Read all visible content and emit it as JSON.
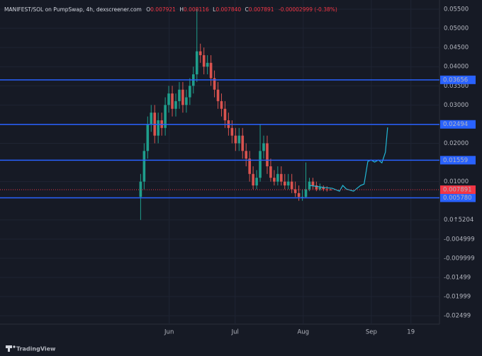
{
  "chart_data": {
    "type": "candlestick",
    "header": {
      "symbol": "MANIFEST/SOL on PumpSwap, 4h, dexscreener.com",
      "ohlc": [
        {
          "key": "O",
          "value": "0.007921"
        },
        {
          "key": "H",
          "value": "0.008116"
        },
        {
          "key": "L",
          "value": "0.007840"
        },
        {
          "key": "C",
          "value": "0.007891"
        }
      ],
      "change": "-0.00002999 (-0.38%)"
    },
    "x": [
      18,
      19.6,
      21.2,
      22.8,
      24.4,
      26,
      27.6,
      29.2,
      30.8,
      32.4,
      34,
      35.6,
      37.2,
      38.8,
      40.4,
      42,
      43.6,
      45.2,
      46.8,
      48.4,
      50,
      51.6,
      53.2,
      54.8,
      56.4,
      58,
      59.6,
      61.2,
      62.8,
      64.4,
      66,
      67.6,
      69.2,
      70.8,
      72.4,
      74,
      75.6,
      77.2,
      78.8,
      80.4,
      82,
      83.6,
      85.2,
      86.8,
      88.4,
      90,
      91.6,
      93.2,
      94.8,
      96.4,
      98,
      99.6,
      101.2,
      102.8,
      104.4
    ],
    "open": [
      0.006,
      0.01,
      0.018,
      0.025,
      0.028,
      0.022,
      0.026,
      0.024,
      0.03,
      0.033,
      0.029,
      0.031,
      0.034,
      0.03,
      0.032,
      0.035,
      0.038,
      0.044,
      0.043,
      0.04,
      0.041,
      0.037,
      0.034,
      0.031,
      0.029,
      0.026,
      0.024,
      0.022,
      0.02,
      0.022,
      0.018,
      0.016,
      0.012,
      0.009,
      0.011,
      0.018,
      0.02,
      0.014,
      0.011,
      0.01,
      0.012,
      0.01,
      0.009,
      0.01,
      0.008,
      0.007,
      0.006,
      0.006,
      0.008,
      0.01,
      0.009,
      0.008,
      0.0085,
      0.008,
      0.007921
    ],
    "high": [
      0.012,
      0.02,
      0.027,
      0.03,
      0.03,
      0.028,
      0.028,
      0.032,
      0.035,
      0.035,
      0.033,
      0.036,
      0.036,
      0.034,
      0.037,
      0.04,
      0.055,
      0.046,
      0.045,
      0.043,
      0.043,
      0.039,
      0.036,
      0.033,
      0.031,
      0.028,
      0.026,
      0.024,
      0.024,
      0.024,
      0.02,
      0.018,
      0.014,
      0.013,
      0.025,
      0.022,
      0.022,
      0.016,
      0.013,
      0.014,
      0.014,
      0.012,
      0.012,
      0.012,
      0.01,
      0.009,
      0.008,
      0.015,
      0.011,
      0.011,
      0.01,
      0.0095,
      0.009,
      0.0088,
      0.008116
    ],
    "low": [
      0.0,
      0.008,
      0.016,
      0.023,
      0.02,
      0.02,
      0.022,
      0.022,
      0.028,
      0.027,
      0.027,
      0.029,
      0.028,
      0.028,
      0.03,
      0.033,
      0.036,
      0.041,
      0.038,
      0.038,
      0.035,
      0.032,
      0.029,
      0.027,
      0.024,
      0.022,
      0.02,
      0.018,
      0.018,
      0.016,
      0.014,
      0.01,
      0.008,
      0.008,
      0.01,
      0.016,
      0.012,
      0.01,
      0.009,
      0.009,
      0.009,
      0.008,
      0.008,
      0.007,
      0.006,
      0.005,
      0.005,
      0.0058,
      0.0075,
      0.008,
      0.0075,
      0.0076,
      0.0075,
      0.0074,
      0.00784
    ],
    "close": [
      0.01,
      0.018,
      0.025,
      0.028,
      0.022,
      0.026,
      0.024,
      0.03,
      0.033,
      0.029,
      0.031,
      0.034,
      0.03,
      0.032,
      0.035,
      0.038,
      0.044,
      0.043,
      0.04,
      0.041,
      0.037,
      0.034,
      0.031,
      0.029,
      0.026,
      0.024,
      0.022,
      0.02,
      0.022,
      0.018,
      0.016,
      0.012,
      0.009,
      0.011,
      0.018,
      0.02,
      0.014,
      0.011,
      0.01,
      0.012,
      0.01,
      0.009,
      0.01,
      0.008,
      0.007,
      0.006,
      0.006,
      0.008,
      0.01,
      0.009,
      0.008,
      0.0085,
      0.008,
      0.0079,
      0.007891
    ],
    "up_color": "#1f9e8c",
    "down_color": "#d9534f",
    "projection": {
      "color": "#22b8d6",
      "x": [
        94.9,
        102,
        105.2,
        108.5,
        110,
        111.6,
        114.9,
        118.1,
        119.7,
        121.4,
        122.9,
        124.5,
        126.2,
        127.8,
        129.4,
        130.4
      ],
      "values": [
        0.009,
        0.00844,
        0.00825,
        0.00751,
        0.009,
        0.00807,
        0.00751,
        0.009,
        0.00936,
        0.01527,
        0.01564,
        0.01509,
        0.01564,
        0.0149,
        0.01768,
        0.02414
      ]
    },
    "levels": [
      {
        "value": 0.03656,
        "label": "0.03656"
      },
      {
        "value": 0.02494,
        "label": "0.02494"
      },
      {
        "value": 0.01559,
        "label": "0.01559"
      },
      {
        "value": 0.00578,
        "label": "0.005780"
      }
    ],
    "level_color": "#2962ff",
    "last_price": {
      "value": 0.007891,
      "label": "0.007891"
    },
    "last_price_color": "#f23645",
    "xlim": [
      -46,
      154
    ],
    "xticks": [
      {
        "value": 31,
        "label": "Jun"
      },
      {
        "value": 61,
        "label": "Jul"
      },
      {
        "value": 92,
        "label": "Aug"
      },
      {
        "value": 123,
        "label": "Sep"
      },
      {
        "value": 141,
        "label": "19"
      }
    ],
    "ylim": [
      -0.0272,
      0.0574
    ],
    "yticks": [
      {
        "value": 0.055,
        "label": "0.05500"
      },
      {
        "value": 0.05,
        "label": "0.05000"
      },
      {
        "value": 0.045,
        "label": "0.04500"
      },
      {
        "value": 0.04,
        "label": "0.04000"
      },
      {
        "value": 0.035,
        "label": "0.03500"
      },
      {
        "value": 0.03,
        "label": "0.03000"
      },
      {
        "value": 0.02,
        "label": "0.02000"
      },
      {
        "value": 0.01,
        "label": "0.01000"
      },
      {
        "value": 0,
        "label": "0.0↑5204"
      },
      {
        "value": -0.005,
        "label": "-0.004999"
      },
      {
        "value": -0.01,
        "label": "-0.009999"
      },
      {
        "value": -0.015,
        "label": "-0.01499"
      },
      {
        "value": -0.02,
        "label": "-0.01999"
      },
      {
        "value": -0.025,
        "label": "-0.02499"
      }
    ],
    "grid": true,
    "brand": "TradingView"
  }
}
